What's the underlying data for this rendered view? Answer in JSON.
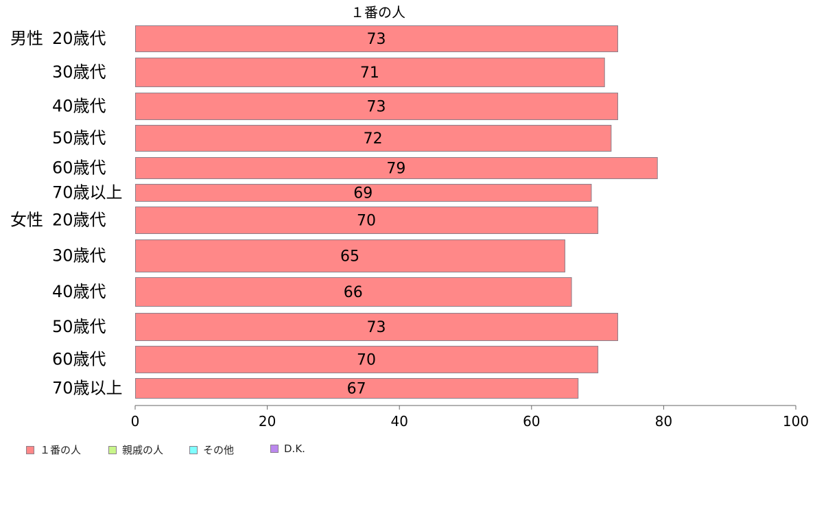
{
  "chart_data": {
    "type": "bar",
    "orientation": "horizontal",
    "title": "１番の人",
    "group_labels": [
      "男性",
      "女性"
    ],
    "categories": [
      "20歳代",
      "30歳代",
      "40歳代",
      "50歳代",
      "60歳代",
      "70歳以上",
      "20歳代",
      "30歳代",
      "40歳代",
      "50歳代",
      "60歳代",
      "70歳以上"
    ],
    "series": [
      {
        "name": "１番の人",
        "values": [
          73,
          71,
          73,
          72,
          79,
          69,
          70,
          65,
          66,
          73,
          70,
          67
        ]
      }
    ],
    "xlim": [
      0,
      100
    ],
    "xticks": [
      "0",
      "20",
      "40",
      "60",
      "80",
      "100"
    ],
    "legend": {
      "placement": "bottom-left",
      "items": [
        {
          "label": "１番の人",
          "color": "#ff8888"
        },
        {
          "label": "親戚の人",
          "color": "#c8f58a"
        },
        {
          "label": "その他",
          "color": "#80ffff"
        },
        {
          "label": "D.K.",
          "color": "#bb88ee"
        }
      ]
    },
    "bar_color": "#ff8888",
    "bar_stroke": "#8a7f8a",
    "grid": false
  }
}
